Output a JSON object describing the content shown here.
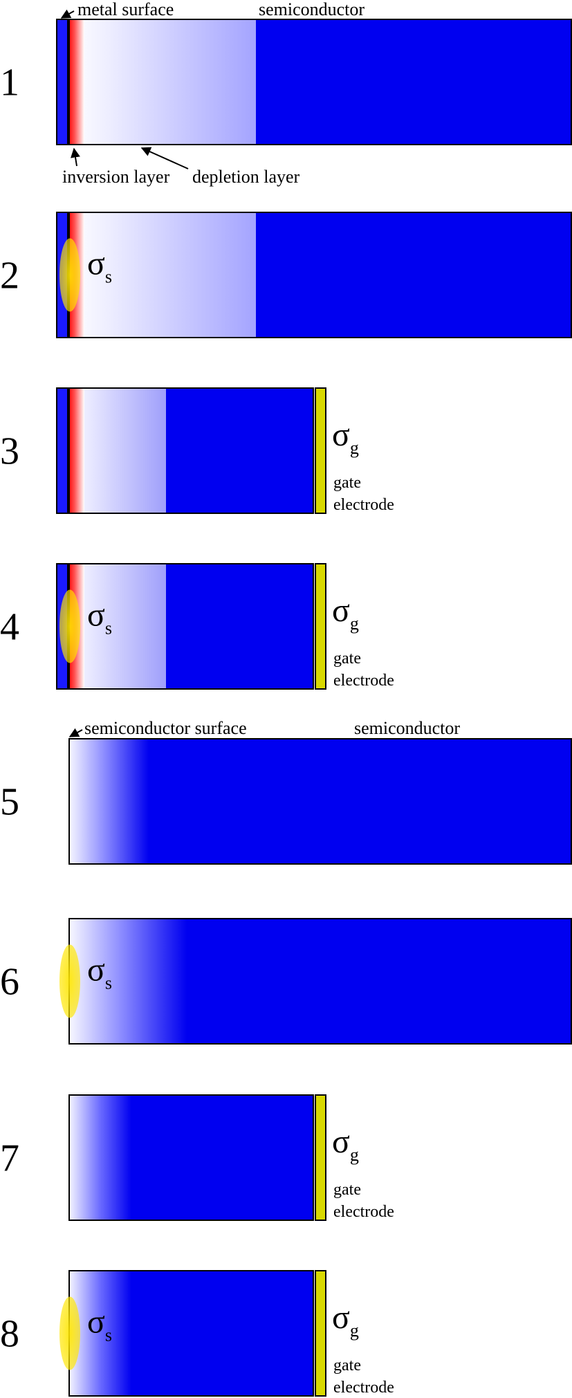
{
  "labels": {
    "metal_surface": "metal surface",
    "semiconductor": "semiconductor",
    "inversion_layer": "inversion layer",
    "depletion_layer": "depletion layer",
    "semiconductor_surface": "semiconductor surface",
    "gate_electrode_line1": "gate",
    "gate_electrode_line2": "electrode",
    "sigma": "σ",
    "sigma_s_sub": "s",
    "sigma_g_sub": "g"
  },
  "rows": [
    {
      "number": "1",
      "variant": "metal",
      "long": true,
      "sigma_s": false,
      "gate": false
    },
    {
      "number": "2",
      "variant": "metal",
      "long": true,
      "sigma_s": true,
      "gate": false
    },
    {
      "number": "3",
      "variant": "metal",
      "long": false,
      "sigma_s": false,
      "gate": true
    },
    {
      "number": "4",
      "variant": "metal",
      "long": false,
      "sigma_s": true,
      "gate": true
    },
    {
      "number": "5",
      "variant": "plain",
      "long": true,
      "sigma_s": false,
      "gate": false
    },
    {
      "number": "6",
      "variant": "plain",
      "long": true,
      "sigma_s": true,
      "gate": false
    },
    {
      "number": "7",
      "variant": "plain",
      "long": false,
      "sigma_s": false,
      "gate": true
    },
    {
      "number": "8",
      "variant": "plain",
      "long": false,
      "sigma_s": true,
      "gate": true
    }
  ],
  "colors": {
    "semiconductor_blue": "#0000f0",
    "metal_blue": "#1a1aff",
    "inversion_red": "#ff0000",
    "charge_yellow": "#ffe600",
    "gate_yellow": "#d8d800"
  }
}
